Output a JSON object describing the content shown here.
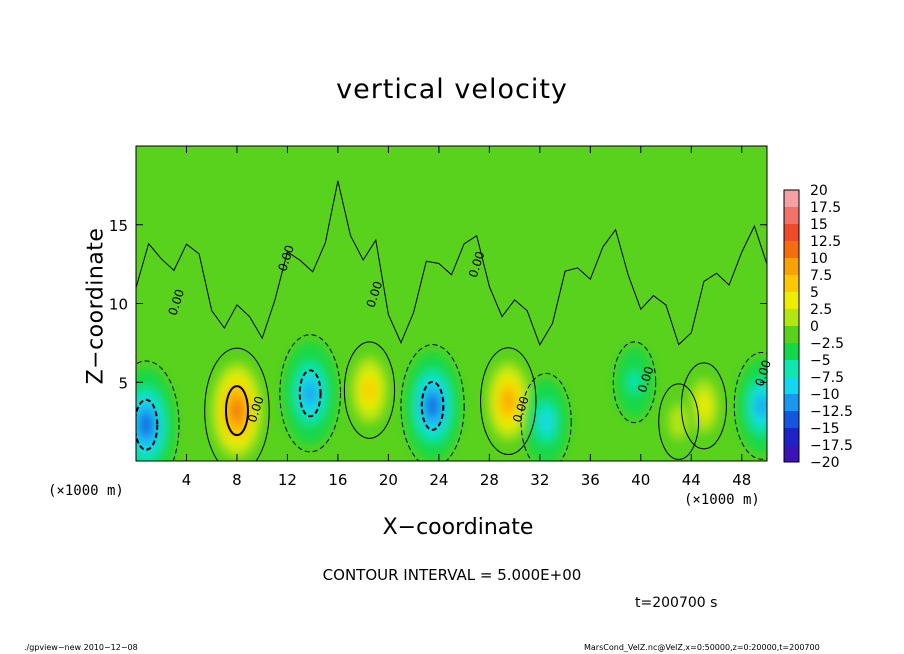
{
  "chart_data": {
    "type": "heatmap",
    "title": "vertical velocity",
    "xlabel": "X−coordinate",
    "ylabel": "Z−coordinate",
    "x_unit_left": "(×1000 m)",
    "x_unit_right": "(×1000 m)",
    "xlim": [
      0,
      50
    ],
    "ylim": [
      0,
      20
    ],
    "xticks": [
      4,
      8,
      12,
      16,
      20,
      24,
      28,
      32,
      36,
      40,
      44,
      48
    ],
    "yticks": [
      5,
      10,
      15
    ],
    "colorbar": {
      "levels": [
        "20",
        "17.5",
        "15",
        "12.5",
        "10",
        "7.5",
        "5",
        "2.5",
        "0",
        "−2.5",
        "−5",
        "−7.5",
        "−10",
        "−12.5",
        "−15",
        "−17.5",
        "−20"
      ],
      "colors": [
        "#f6a0a4",
        "#f07268",
        "#ee4a2a",
        "#f46e0c",
        "#f8a205",
        "#fcc800",
        "#eced00",
        "#b4e612",
        "#58d21c",
        "#12d84a",
        "#10e6b0",
        "#14d6f0",
        "#1a98f0",
        "#1456e0",
        "#1c24c8",
        "#3a14b6",
        "#6a14aa"
      ]
    },
    "contour_labels": [
      "0.00",
      "0.00",
      "0.00",
      "0.00",
      "0.00",
      "0.00",
      "0.00",
      "0.00"
    ],
    "contour_interval_text": "CONTOUR INTERVAL = 5.000E+00",
    "features": [
      {
        "x": 8,
        "z": 3.2,
        "value": 12.5
      },
      {
        "x": 18.5,
        "z": 4.5,
        "value": 7
      },
      {
        "x": 29.5,
        "z": 3.8,
        "value": 9
      },
      {
        "x": 45,
        "z": 3.5,
        "value": 5
      },
      {
        "x": 43,
        "z": 2.5,
        "value": 3
      },
      {
        "x": 0.8,
        "z": 2.3,
        "value": -13
      },
      {
        "x": 13.8,
        "z": 4.3,
        "value": -11
      },
      {
        "x": 23.5,
        "z": 3.5,
        "value": -12
      },
      {
        "x": 32.5,
        "z": 2.5,
        "value": -7
      },
      {
        "x": 39.5,
        "z": 5,
        "value": -4
      },
      {
        "x": 49.6,
        "z": 3.5,
        "value": -9
      }
    ]
  },
  "annotations": {
    "time": "t=200700 s",
    "footer_left": "./gpview−new   2010−12−08",
    "footer_right": "MarsCond_VelZ.nc@VelZ,x=0:50000,z=0:20000,t=200700"
  }
}
